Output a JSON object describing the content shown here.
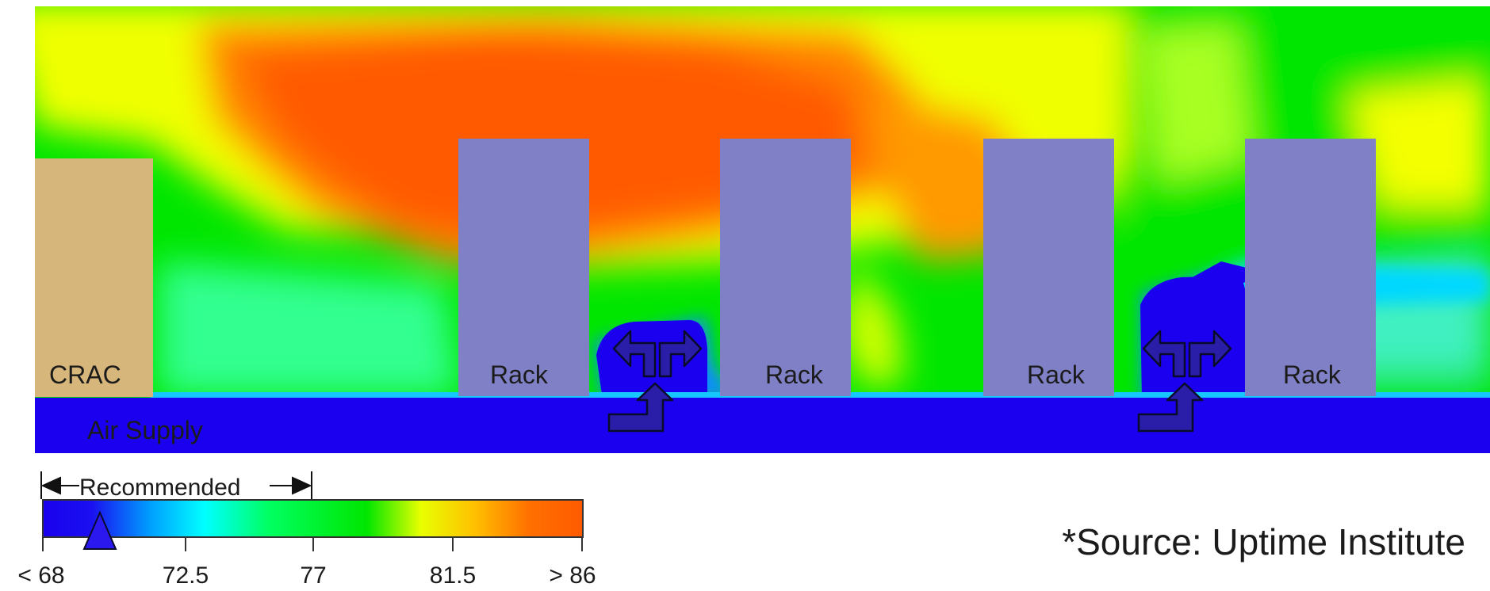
{
  "labels": {
    "crac": "CRAC",
    "air_supply": "Air Supply",
    "racks": [
      "Rack",
      "Rack",
      "Rack",
      "Rack"
    ]
  },
  "legend": {
    "bracket_label": "Recommended",
    "ticks": [
      "< 68",
      "72.5",
      "77",
      "81.5",
      "> 86"
    ],
    "range_min": 68,
    "range_max": 86,
    "recommended_range": [
      68,
      77
    ],
    "marker_value": 70,
    "gradient_colors": [
      "#1a00ee",
      "#00a0ff",
      "#00ffff",
      "#00ff40",
      "#00e600",
      "#ffff00",
      "#ff9000",
      "#ff5a00"
    ]
  },
  "source": "*Source: Uptime Institute",
  "colors": {
    "supply": "#1a00ee",
    "rack": "#7f80c6",
    "crac": "#d6b67a",
    "hot": "#ff5a00",
    "cool": "#00e600"
  }
}
